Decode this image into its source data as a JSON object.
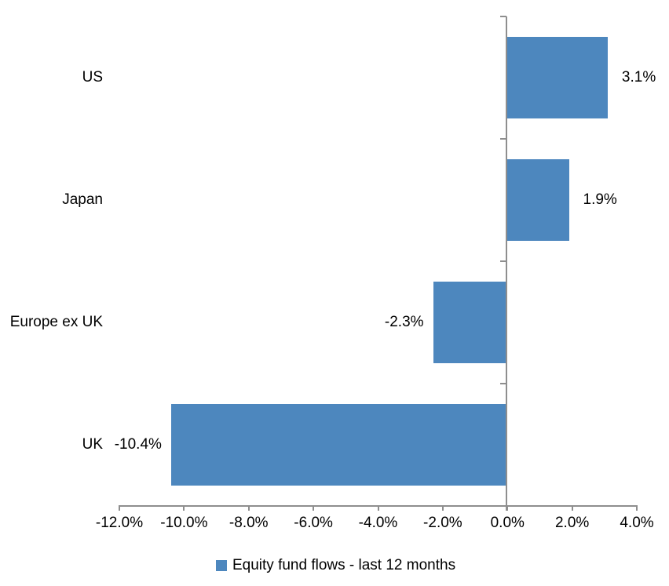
{
  "chart_data": {
    "type": "bar",
    "orientation": "horizontal",
    "title": "",
    "xlabel": "",
    "ylabel": "",
    "categories": [
      "US",
      "Japan",
      "Europe ex UK",
      "UK"
    ],
    "series": [
      {
        "name": "Equity fund flows - last 12 months",
        "values": [
          3.1,
          1.9,
          -2.3,
          -10.4
        ],
        "data_labels": [
          "3.1%",
          "1.9%",
          "-2.3%",
          "-10.4%"
        ],
        "color": "#4D87BE"
      }
    ],
    "xlim": [
      -12,
      4
    ],
    "x_tick_step": 2,
    "x_tick_labels": [
      "-12.0%",
      "-10.0%",
      "-8.0%",
      "-6.0%",
      "-4.0%",
      "-2.0%",
      "0.0%",
      "2.0%",
      "4.0%"
    ],
    "grid": false,
    "legend_position": "bottom",
    "axis_color": "#8E8E8E",
    "text_color": "#000000",
    "background_color": "#FFFFFF"
  },
  "legend": {
    "label": "Equity fund flows - last 12 months",
    "swatch_color": "#4D87BE"
  }
}
